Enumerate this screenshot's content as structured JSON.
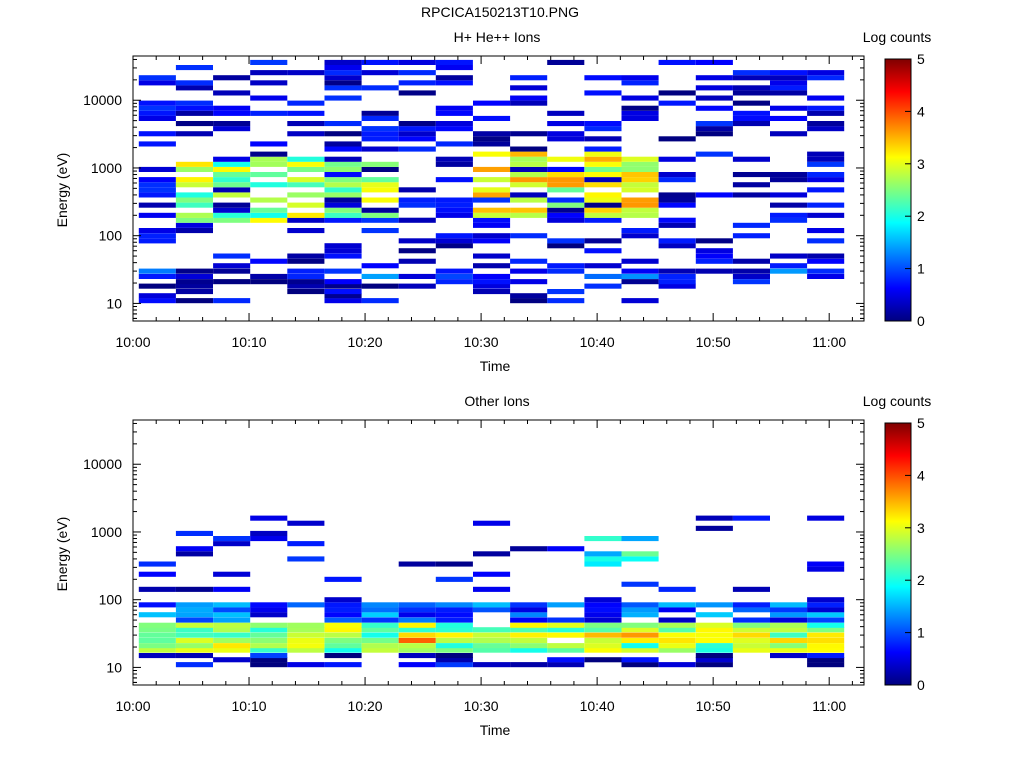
{
  "page_title": "RPCICA150213T10.PNG",
  "chart_data": [
    {
      "type": "heatmap",
      "title": "H+ He++ Ions",
      "xlabel": "Time",
      "ylabel": "Energy (eV)",
      "colorbar_label": "Log counts",
      "x_tick_labels": [
        "10:00",
        "10:10",
        "10:20",
        "10:30",
        "10:40",
        "10:50",
        "11:00"
      ],
      "x_tick_minutes": [
        0,
        10,
        20,
        30,
        40,
        50,
        60
      ],
      "xlim_minutes": [
        0,
        63
      ],
      "y_tick_labels": [
        "10",
        "100",
        "1000",
        "10000"
      ],
      "y_tick_values": [
        10,
        100,
        1000,
        10000
      ],
      "y_scale": "log",
      "ylim": [
        5.5,
        45000
      ],
      "colorbar_ticks": [
        "0",
        "1",
        "2",
        "3",
        "4",
        "5"
      ],
      "clim": [
        0,
        5
      ],
      "colormap": [
        "#00007f",
        "#0000ff",
        "#007fff",
        "#00ffff",
        "#7fff7f",
        "#ffff00",
        "#ff7f00",
        "#ff0000",
        "#7f0000"
      ],
      "time_columns_minutes": [
        0.5,
        3.7,
        6.9,
        10.1,
        13.3,
        16.5,
        19.7,
        22.9,
        26.1,
        29.3,
        32.5,
        35.7,
        38.9,
        42.1,
        45.3,
        48.5,
        51.7,
        54.9,
        58.1
      ],
      "energy_bins_eV": [
        11,
        13,
        15,
        18,
        21,
        25,
        30,
        36,
        42,
        50,
        60,
        71,
        84,
        100,
        119,
        142,
        169,
        200,
        238,
        283,
        336,
        400,
        475,
        565,
        672,
        800,
        951,
        1130,
        1345,
        1600,
        1902,
        2262,
        2690,
        3200,
        3805,
        4525,
        5381,
        6400,
        7611,
        9051,
        10762,
        12800,
        15221,
        18101,
        21525,
        25600,
        30443,
        36203
      ],
      "noise_level": 0.12,
      "features": [
        {
          "t": [
            3.7,
            19.7
          ],
          "e": [
            150,
            1500
          ],
          "v": 2.6,
          "d": 0.55
        },
        {
          "t": [
            29.3,
            42.1
          ],
          "e": [
            180,
            1600
          ],
          "v": 3.0,
          "d": 0.6
        },
        {
          "t": [
            38.9,
            42.1
          ],
          "e": [
            300,
            900
          ],
          "v": 3.2,
          "d": 0.8
        },
        {
          "t": [
            0.5,
            58.1
          ],
          "e": [
            24,
            32
          ],
          "v": 0.8,
          "d": 0.45
        },
        {
          "t": [
            0.5,
            19.7
          ],
          "e": [
            10,
            22
          ],
          "v": 0.3,
          "d": 0.5
        }
      ]
    },
    {
      "type": "heatmap",
      "title": "Other Ions",
      "xlabel": "Time",
      "ylabel": "Energy (eV)",
      "colorbar_label": "Log counts",
      "x_tick_labels": [
        "10:00",
        "10:10",
        "10:20",
        "10:30",
        "10:40",
        "10:50",
        "11:00"
      ],
      "x_tick_minutes": [
        0,
        10,
        20,
        30,
        40,
        50,
        60
      ],
      "xlim_minutes": [
        0,
        63
      ],
      "y_tick_labels": [
        "10",
        "100",
        "1000",
        "10000"
      ],
      "y_tick_values": [
        10,
        100,
        1000,
        10000
      ],
      "y_scale": "log",
      "ylim": [
        5.5,
        45000
      ],
      "colorbar_ticks": [
        "0",
        "1",
        "2",
        "3",
        "4",
        "5"
      ],
      "clim": [
        0,
        5
      ],
      "colormap": [
        "#00007f",
        "#0000ff",
        "#007fff",
        "#00ffff",
        "#7fff7f",
        "#ffff00",
        "#ff7f00",
        "#ff0000",
        "#7f0000"
      ],
      "time_columns_minutes": [
        0.5,
        3.7,
        6.9,
        10.1,
        13.3,
        16.5,
        19.7,
        22.9,
        26.1,
        29.3,
        32.5,
        35.7,
        38.9,
        42.1,
        45.3,
        48.5,
        51.7,
        54.9,
        58.1
      ],
      "energy_bins_eV": [
        11,
        13,
        15,
        18,
        21,
        25,
        30,
        36,
        42,
        50,
        60,
        71,
        84,
        100,
        119,
        142,
        169,
        200,
        238,
        283,
        336,
        400,
        475,
        565,
        672,
        800,
        951,
        1130,
        1345,
        1600
      ],
      "noise_level": 0.05,
      "features": [
        {
          "t": [
            0.5,
            58.1
          ],
          "e": [
            18,
            45
          ],
          "v": 2.6,
          "d": 0.95
        },
        {
          "t": [
            22.9,
            58.1
          ],
          "e": [
            22,
            32
          ],
          "v": 3.3,
          "d": 0.95
        },
        {
          "t": [
            0.5,
            58.1
          ],
          "e": [
            45,
            90
          ],
          "v": 1.0,
          "d": 0.8
        },
        {
          "t": [
            38.9,
            42.1
          ],
          "e": [
            300,
            800
          ],
          "v": 1.8,
          "d": 0.7
        },
        {
          "t": [
            0.5,
            58.1
          ],
          "e": [
            9,
            16
          ],
          "v": 0.3,
          "d": 0.5
        }
      ]
    }
  ]
}
